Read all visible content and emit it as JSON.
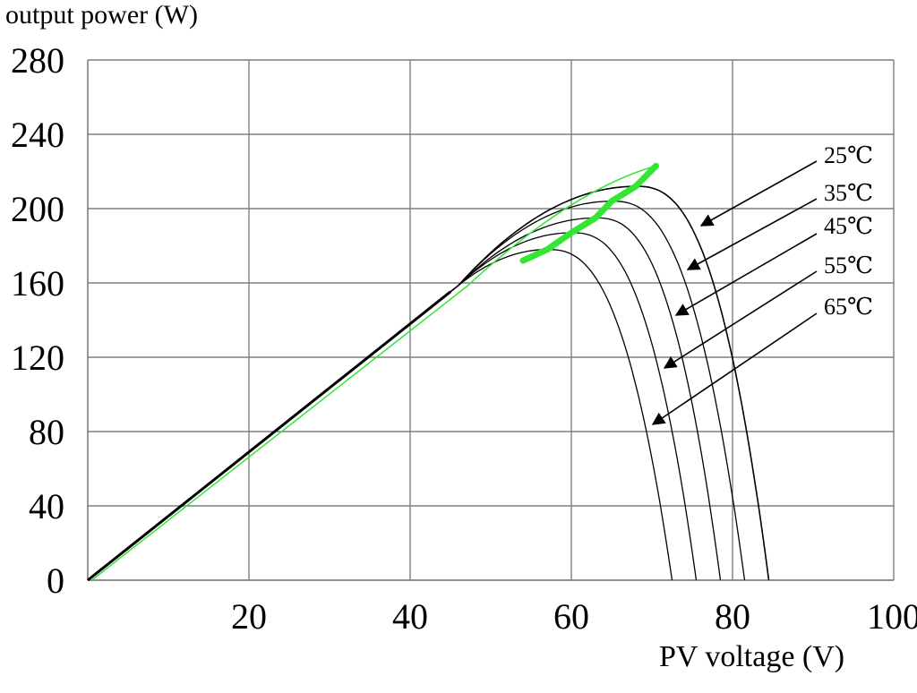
{
  "chart_data": {
    "type": "line",
    "ylabel": "output power (W)",
    "xlabel": "PV voltage (V)",
    "xlim": [
      0,
      100
    ],
    "ylim": [
      0,
      280
    ],
    "x_ticks": [
      "20",
      "40",
      "60",
      "80",
      "100"
    ],
    "y_ticks": [
      "0",
      "40",
      "80",
      "120",
      "160",
      "200",
      "240",
      "280"
    ],
    "grid": true,
    "colors": {
      "curves": "#000000",
      "mpp_locus": "#33e633",
      "grid": "#7f7f7f"
    },
    "series": [
      {
        "name": "25℃",
        "mpp_voltage": 68,
        "mpp_power": 212,
        "voc": 84.5
      },
      {
        "name": "35℃",
        "mpp_voltage": 65,
        "mpp_power": 204,
        "voc": 81.5
      },
      {
        "name": "45℃",
        "mpp_voltage": 63,
        "mpp_power": 195,
        "voc": 78.5
      },
      {
        "name": "55℃",
        "mpp_voltage": 60,
        "mpp_power": 187,
        "voc": 75.5
      },
      {
        "name": "65℃",
        "mpp_voltage": 57,
        "mpp_power": 178,
        "voc": 72.5
      }
    ],
    "annotations": {
      "arrow_labels": [
        "25℃",
        "35℃",
        "45℃",
        "55℃",
        "65℃"
      ]
    }
  }
}
